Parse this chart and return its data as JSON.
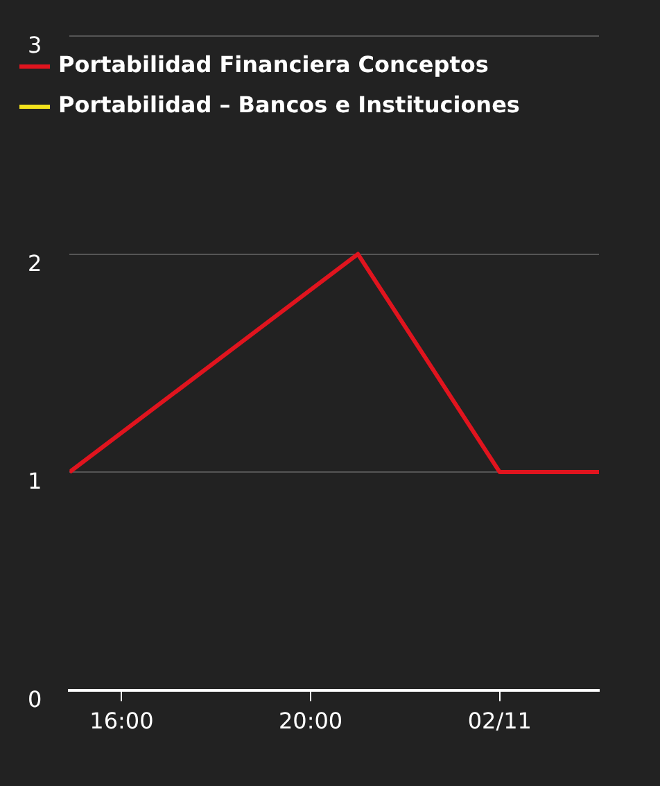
{
  "chart_data": {
    "type": "line",
    "x": [
      14.9,
      21,
      24,
      26.1
    ],
    "series": [
      {
        "name": "Portabilidad Financiera Conceptos",
        "color": "#e0141e",
        "values": [
          1,
          2,
          1,
          1
        ]
      },
      {
        "name": "Portabilidad – Bancos e Instituciones",
        "color": "#f2e21c",
        "values": [
          null,
          null,
          null,
          null
        ]
      }
    ],
    "xlim": [
      14.9,
      26.1
    ],
    "xticks": [
      {
        "value": 16,
        "label": "16:00"
      },
      {
        "value": 20,
        "label": "20:00"
      },
      {
        "value": 24,
        "label": "02/11"
      }
    ],
    "ylim": [
      0,
      3
    ],
    "yticks": [
      0,
      1,
      2,
      3
    ],
    "grid": "y",
    "legend": "top left",
    "marker": "none"
  }
}
